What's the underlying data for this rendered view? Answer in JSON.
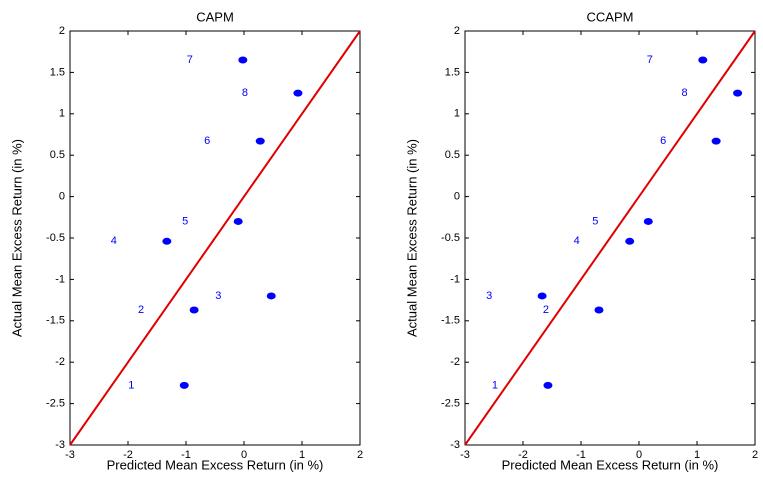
{
  "chart_data": [
    {
      "type": "scatter",
      "title": "CAPM",
      "x_label": "Predicted Mean Excess Return (in %)",
      "y_label": "Actual Mean Excess Return (in %)",
      "x": [
        -1.03,
        -0.86,
        0.47,
        -1.33,
        -0.1,
        0.28,
        -0.02,
        0.93
      ],
      "y": [
        -2.28,
        -1.37,
        -1.2,
        -0.54,
        -0.3,
        0.67,
        1.65,
        1.25
      ],
      "point_labels": [
        "1",
        "2",
        "3",
        "4",
        "5",
        "6",
        "7",
        "8"
      ],
      "color": "#0000ff",
      "reference_line": {
        "x": [
          -3,
          2
        ],
        "y": [
          -3,
          2
        ],
        "color": "#e00000"
      },
      "xlim": [
        -3,
        2
      ],
      "ylim": [
        -3,
        2
      ],
      "xticks": [
        -3,
        -2,
        -1,
        0,
        1,
        2
      ],
      "yticks": [
        -3,
        -2.5,
        -2,
        -1.5,
        -1,
        -0.5,
        0,
        0.5,
        1,
        1.5,
        2
      ],
      "grid": false
    },
    {
      "type": "scatter",
      "title": "CCAPM",
      "x_label": "Predicted Mean Excess Return (in %)",
      "y_label": "Actual Mean Excess Return (in %)",
      "x": [
        -1.57,
        -0.69,
        -1.67,
        -0.16,
        0.16,
        1.33,
        1.1,
        1.7
      ],
      "y": [
        -2.28,
        -1.37,
        -1.2,
        -0.54,
        -0.3,
        0.67,
        1.65,
        1.25
      ],
      "point_labels": [
        "1",
        "2",
        "3",
        "4",
        "5",
        "6",
        "7",
        "8"
      ],
      "color": "#0000ff",
      "reference_line": {
        "x": [
          -3,
          2
        ],
        "y": [
          -3,
          2
        ],
        "color": "#e00000"
      },
      "xlim": [
        -3,
        2
      ],
      "ylim": [
        -3,
        2
      ],
      "xticks": [
        -3,
        -2,
        -1,
        0,
        1,
        2
      ],
      "yticks": [
        -3,
        -2.5,
        -2,
        -1.5,
        -1,
        -0.5,
        0,
        0.5,
        1,
        1.5,
        2
      ],
      "grid": false
    }
  ]
}
